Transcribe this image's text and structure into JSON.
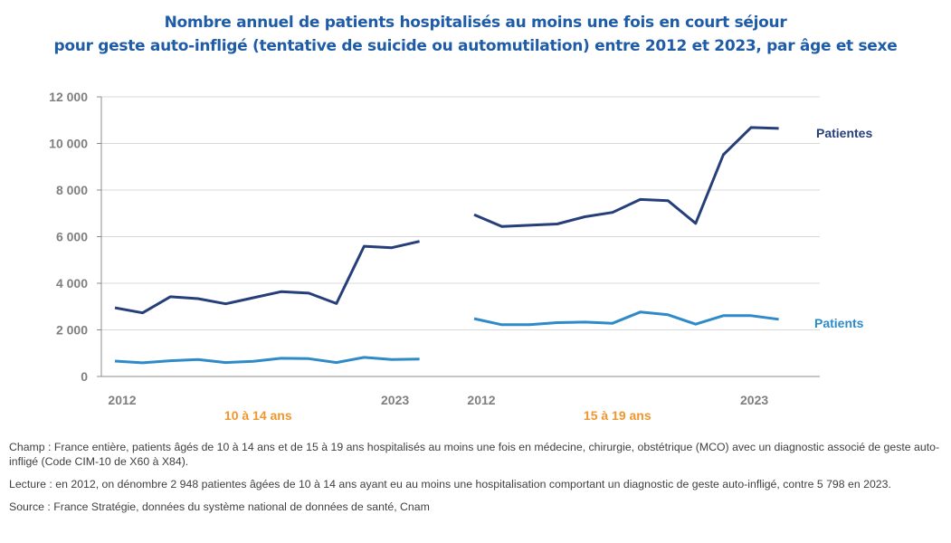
{
  "title": {
    "line1": "Nombre annuel de patients hospitalisés au moins une fois en court séjour",
    "line2": "pour geste auto-infligé (tentative de suicide ou automutilation) entre 2012 et 2023, par âge et sexe"
  },
  "colors": {
    "title": "#1f5ca8",
    "female": "#263f7a",
    "male": "#2e8bc8",
    "group_label": "#f0962e",
    "axis_text": "#7f7f7f",
    "grid": "#d9d9d9"
  },
  "chart_data": {
    "type": "line",
    "title": "Nombre annuel de patients hospitalisés au moins une fois en court séjour pour geste auto-infligé (tentative de suicide ou automutilation) entre 2012 et 2023, par âge et sexe",
    "xlabel": "",
    "ylabel": "",
    "ylim": [
      0,
      12000
    ],
    "yticks": [
      0,
      2000,
      4000,
      6000,
      8000,
      10000,
      12000
    ],
    "ytick_labels": [
      "0",
      "2 000",
      "4 000",
      "6 000",
      "8 000",
      "10 000",
      "12 000"
    ],
    "grid": true,
    "x": [
      2012,
      2013,
      2014,
      2015,
      2016,
      2017,
      2018,
      2019,
      2020,
      2021,
      2022,
      2023
    ],
    "groups": [
      {
        "label": "10 à 14 ans",
        "xtick_labels": [
          "2012",
          "2023"
        ],
        "series": [
          {
            "name": "Patientes",
            "values": [
              2948,
              2730,
              3420,
              3340,
              3120,
              3380,
              3640,
              3575,
              3130,
              5590,
              5525,
              5798
            ]
          },
          {
            "name": "Patients",
            "values": [
              660,
              585,
              675,
              730,
              600,
              650,
              780,
              765,
              600,
              820,
              730,
              750
            ]
          }
        ]
      },
      {
        "label": "15 à 19 ans",
        "xtick_labels": [
          "2012",
          "2023"
        ],
        "series": [
          {
            "name": "Patientes",
            "values": [
              6945,
              6440,
              6490,
              6545,
              6855,
              7040,
              7595,
              7545,
              6570,
              9515,
              10685,
              10645
            ]
          },
          {
            "name": "Patients",
            "values": [
              2480,
              2220,
              2225,
              2310,
              2335,
              2285,
              2765,
              2650,
              2245,
              2610,
              2610,
              2455
            ]
          }
        ]
      }
    ],
    "legend": [
      {
        "name": "Patientes",
        "placement": "right"
      },
      {
        "name": "Patients",
        "placement": "right"
      }
    ]
  },
  "notes": {
    "champ": "Champ : France entière, patients âgés de 10 à 14 ans et de 15 à 19 ans hospitalisés au moins une fois en médecine, chirurgie, obstétrique (MCO) avec un diagnostic associé de geste auto-infligé (Code CIM-10 de X60 à X84).",
    "lecture": "Lecture : en 2012, on dénombre 2 948 patientes âgées de 10 à 14 ans ayant eu au moins une hospitalisation comportant un diagnostic de geste auto-infligé, contre 5 798 en 2023.",
    "source": "Source : France Stratégie, données du système national de données de santé, Cnam"
  }
}
